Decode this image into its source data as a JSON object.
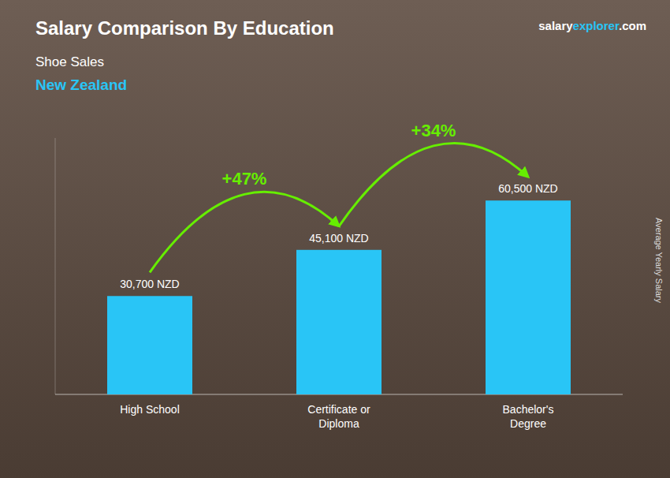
{
  "chart_data": {
    "type": "bar",
    "title": "Salary Comparison By Education",
    "subtitle": [
      "Shoe Sales",
      "New Zealand"
    ],
    "y_label": "Average Yearly Salary",
    "categories": [
      "High School",
      "Certificate or\nDiploma",
      "Bachelor's\nDegree"
    ],
    "values": [
      30700,
      45100,
      60500
    ],
    "value_labels": [
      "30,700 NZD",
      "45,100 NZD",
      "60,500 NZD"
    ],
    "data_labels": true,
    "color": "#29c5f6",
    "ylim": [
      0,
      80000
    ],
    "grid": false,
    "tick_labels": "x",
    "annotations": [
      {
        "text": "+47%",
        "color": "#66ee00"
      },
      {
        "text": "+34%",
        "color": "#66ee00"
      }
    ],
    "brand": [
      {
        "text": "salary",
        "color": "#ffffff"
      },
      {
        "text": "explorer",
        "color": "#29c5f6"
      },
      {
        "text": ".com",
        "color": "#ffffff"
      }
    ]
  }
}
